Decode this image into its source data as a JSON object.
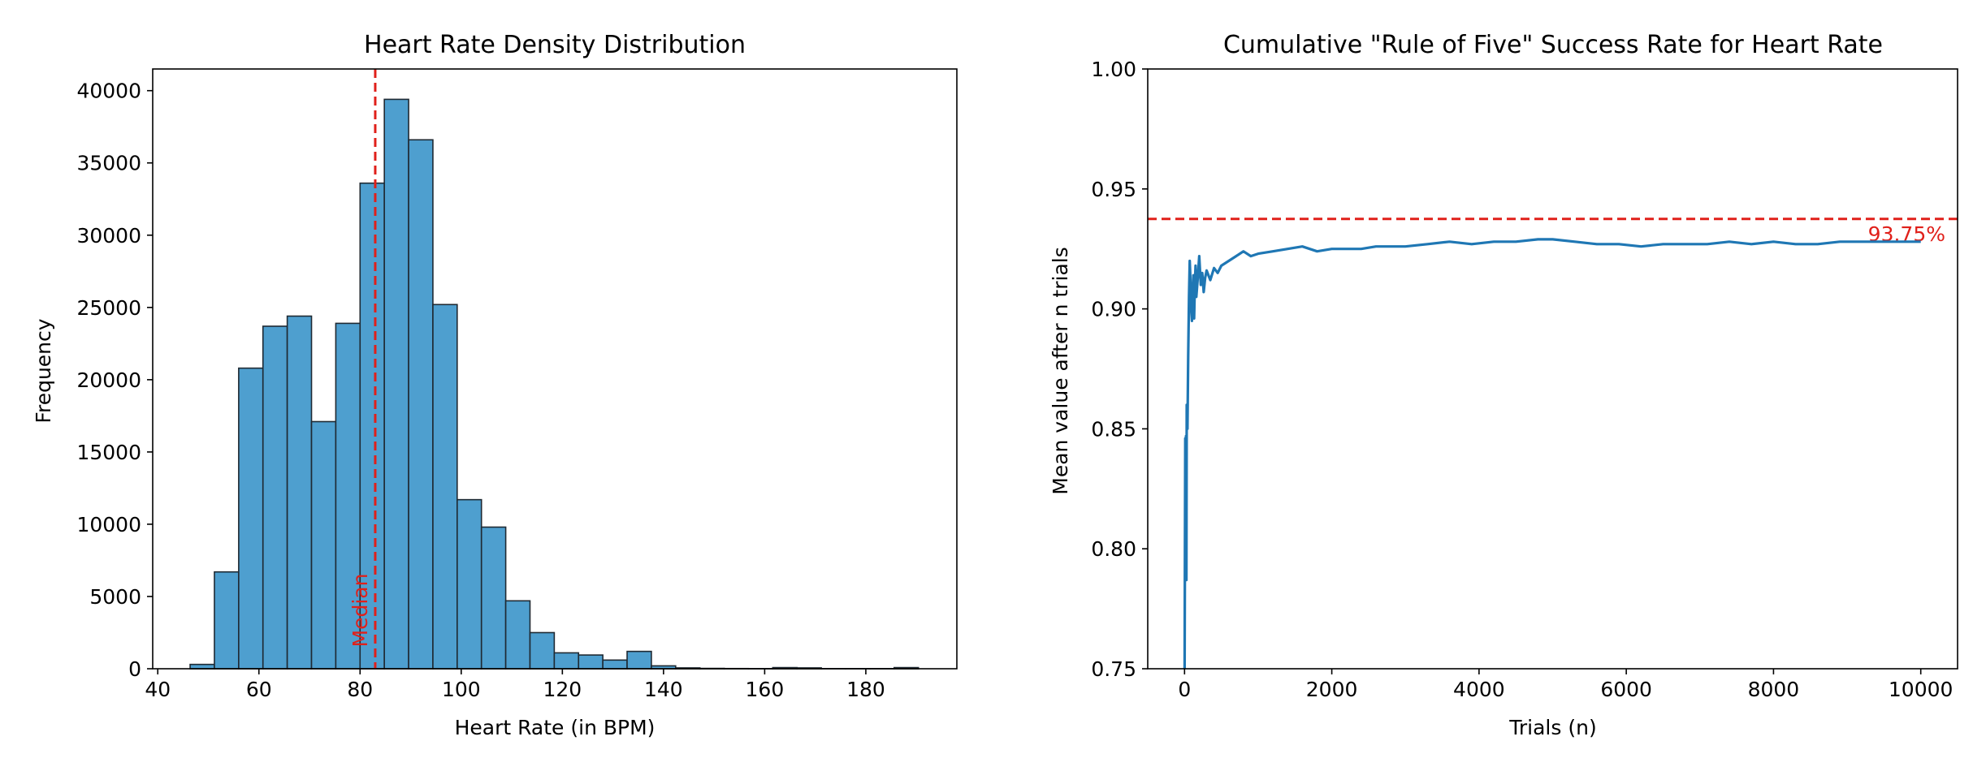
{
  "colors": {
    "bar_fill": "#4e9fcf",
    "bar_edge": "#1f2a33",
    "line": "#1f77b4",
    "reference": "#e0201a",
    "axis": "#000000"
  },
  "chart_data": [
    {
      "type": "bar",
      "title": "Heart Rate Density Distribution",
      "xlabel": "Heart Rate (in BPM)",
      "ylabel": "Frequency",
      "xlim": [
        39,
        198
      ],
      "ylim": [
        0,
        41500
      ],
      "xticks": [
        40,
        60,
        80,
        100,
        120,
        140,
        160,
        180
      ],
      "yticks": [
        0,
        5000,
        10000,
        15000,
        20000,
        25000,
        30000,
        35000,
        40000
      ],
      "grid": false,
      "bins": [
        {
          "x0": 46.4,
          "x1": 51.2,
          "value": 300
        },
        {
          "x0": 51.2,
          "x1": 56.0,
          "value": 6700
        },
        {
          "x0": 56.0,
          "x1": 60.8,
          "value": 20800
        },
        {
          "x0": 60.8,
          "x1": 65.6,
          "value": 23700
        },
        {
          "x0": 65.6,
          "x1": 70.4,
          "value": 24400
        },
        {
          "x0": 70.4,
          "x1": 75.2,
          "value": 17100
        },
        {
          "x0": 75.2,
          "x1": 80.0,
          "value": 23900
        },
        {
          "x0": 80.0,
          "x1": 84.8,
          "value": 33600
        },
        {
          "x0": 84.8,
          "x1": 89.6,
          "value": 39400
        },
        {
          "x0": 89.6,
          "x1": 94.4,
          "value": 36600
        },
        {
          "x0": 94.4,
          "x1": 99.2,
          "value": 25200
        },
        {
          "x0": 99.2,
          "x1": 104.0,
          "value": 11700
        },
        {
          "x0": 104.0,
          "x1": 108.8,
          "value": 9800
        },
        {
          "x0": 108.8,
          "x1": 113.6,
          "value": 4700
        },
        {
          "x0": 113.6,
          "x1": 118.4,
          "value": 2500
        },
        {
          "x0": 118.4,
          "x1": 123.2,
          "value": 1100
        },
        {
          "x0": 123.2,
          "x1": 128.0,
          "value": 950
        },
        {
          "x0": 128.0,
          "x1": 132.8,
          "value": 600
        },
        {
          "x0": 132.8,
          "x1": 137.6,
          "value": 1200
        },
        {
          "x0": 137.6,
          "x1": 142.4,
          "value": 200
        },
        {
          "x0": 142.4,
          "x1": 147.2,
          "value": 60
        },
        {
          "x0": 147.2,
          "x1": 152.0,
          "value": 25
        },
        {
          "x0": 152.0,
          "x1": 156.8,
          "value": 15
        },
        {
          "x0": 156.8,
          "x1": 161.6,
          "value": 10
        },
        {
          "x0": 161.6,
          "x1": 166.4,
          "value": 80
        },
        {
          "x0": 166.4,
          "x1": 171.2,
          "value": 60
        },
        {
          "x0": 171.2,
          "x1": 176.0,
          "value": 10
        },
        {
          "x0": 176.0,
          "x1": 180.8,
          "value": 10
        },
        {
          "x0": 180.8,
          "x1": 185.6,
          "value": 10
        },
        {
          "x0": 185.6,
          "x1": 190.4,
          "value": 80
        }
      ],
      "annotations": [
        {
          "type": "vline",
          "x": 83,
          "label": "Median",
          "style": "dashed"
        }
      ]
    },
    {
      "type": "line",
      "title": "Cumulative \"Rule of Five\" Success Rate for Heart Rate",
      "xlabel": "Trials (n)",
      "ylabel": "Mean value after n trials",
      "xlim": [
        -500,
        10500
      ],
      "ylim": [
        0.75,
        1.0
      ],
      "xticks": [
        0,
        2000,
        4000,
        6000,
        8000,
        10000
      ],
      "yticks": [
        0.75,
        0.8,
        0.85,
        0.9,
        0.95,
        1.0
      ],
      "grid": false,
      "x": [
        1,
        5,
        10,
        15,
        20,
        25,
        30,
        40,
        50,
        60,
        70,
        80,
        90,
        100,
        110,
        120,
        130,
        140,
        150,
        160,
        180,
        200,
        220,
        240,
        260,
        280,
        300,
        350,
        400,
        450,
        500,
        600,
        700,
        800,
        900,
        1000,
        1200,
        1400,
        1600,
        1800,
        2000,
        2200,
        2400,
        2600,
        2800,
        3000,
        3300,
        3600,
        3900,
        4200,
        4500,
        4800,
        5000,
        5300,
        5600,
        5900,
        6200,
        6500,
        6800,
        7100,
        7400,
        7700,
        8000,
        8300,
        8600,
        8900,
        9200,
        9500,
        9800,
        10000
      ],
      "y": [
        0.75,
        0.8,
        0.846,
        0.816,
        0.847,
        0.787,
        0.86,
        0.85,
        0.88,
        0.905,
        0.92,
        0.912,
        0.9,
        0.895,
        0.905,
        0.914,
        0.896,
        0.91,
        0.918,
        0.905,
        0.913,
        0.922,
        0.91,
        0.915,
        0.907,
        0.913,
        0.916,
        0.912,
        0.917,
        0.915,
        0.918,
        0.92,
        0.922,
        0.924,
        0.922,
        0.923,
        0.924,
        0.925,
        0.926,
        0.924,
        0.925,
        0.925,
        0.925,
        0.926,
        0.926,
        0.926,
        0.927,
        0.928,
        0.927,
        0.928,
        0.928,
        0.929,
        0.929,
        0.928,
        0.927,
        0.927,
        0.926,
        0.927,
        0.927,
        0.927,
        0.928,
        0.927,
        0.928,
        0.927,
        0.927,
        0.928,
        0.928,
        0.928,
        0.928,
        0.928
      ],
      "annotations": [
        {
          "type": "hline",
          "y": 0.9375,
          "label": "93.75%",
          "style": "dashed"
        }
      ]
    }
  ]
}
